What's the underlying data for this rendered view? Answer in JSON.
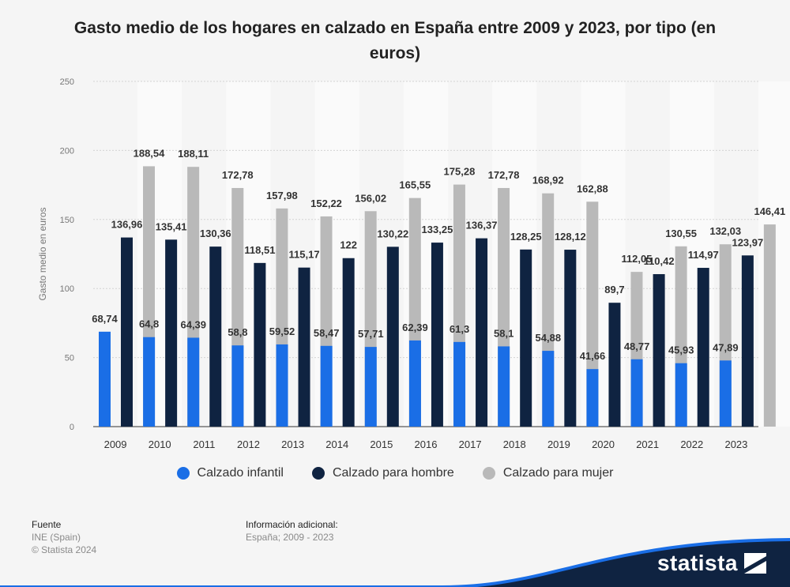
{
  "title": "Gasto medio de los hogares en calzado en España entre 2009 y 2023, por tipo (en euros)",
  "legend": [
    {
      "label": "Calzado infantil",
      "color": "#1a6ee6"
    },
    {
      "label": "Calzado para hombre",
      "color": "#0f2341"
    },
    {
      "label": "Calzado para mujer",
      "color": "#b9b9b9"
    }
  ],
  "footer": {
    "source_heading": "Fuente",
    "source_line1": "INE (Spain)",
    "source_line2": "© Statista 2024",
    "info_heading": "Información adicional:",
    "info_line1": "España; 2009 - 2023"
  },
  "brand": {
    "name": "statista"
  },
  "chart_data": {
    "type": "bar",
    "ylabel": "Gasto medio en euros",
    "xlabel": "",
    "ylim": [
      0,
      250
    ],
    "yticks": [
      "0",
      "50",
      "100",
      "150",
      "200",
      "250"
    ],
    "grid": true,
    "legend_position": "bottom",
    "categories": [
      "2009",
      "2010",
      "2011",
      "2012",
      "2013",
      "2014",
      "2015",
      "2016",
      "2017",
      "2018",
      "2019",
      "2020",
      "2021",
      "2022",
      "2023"
    ],
    "series": [
      {
        "name": "Calzado infantil",
        "color": "#1a6ee6",
        "values": [
          68.74,
          64.8,
          64.39,
          58.8,
          59.52,
          58.47,
          57.71,
          62.39,
          61.3,
          58.1,
          54.88,
          41.66,
          48.77,
          45.93,
          47.89
        ],
        "labels": [
          "68,74",
          "64,8",
          "64,39",
          "58,8",
          "59,52",
          "58,47",
          "57,71",
          "62,39",
          "61,3",
          "58,1",
          "54,88",
          "41,66",
          "48,77",
          "45,93",
          "47,89"
        ]
      },
      {
        "name": "Calzado para hombre",
        "color": "#0f2341",
        "values": [
          136.96,
          135.41,
          130.36,
          118.51,
          115.17,
          122,
          130.22,
          133.25,
          136.37,
          128.25,
          128.12,
          89.7,
          110.42,
          114.97,
          123.97
        ],
        "labels": [
          "136,96",
          "135,41",
          "130,36",
          "118,51",
          "115,17",
          "122",
          "130,22",
          "133,25",
          "136,37",
          "128,25",
          "128,12",
          "89,7",
          "110,42",
          "114,97",
          "123,97"
        ]
      },
      {
        "name": "Calzado para mujer",
        "color": "#b9b9b9",
        "values": [
          188.54,
          188.11,
          172.78,
          157.98,
          152.22,
          156.02,
          165.55,
          175.28,
          172.78,
          168.92,
          162.88,
          112.05,
          130.55,
          132.03,
          146.41
        ],
        "labels": [
          "188,54",
          "188,11",
          "172,78",
          "157,98",
          "152,22",
          "156,02",
          "165,55",
          "175,28",
          "172,78",
          "168,92",
          "162,88",
          "112,05",
          "130,55",
          "132,03",
          "146,41"
        ]
      }
    ]
  }
}
